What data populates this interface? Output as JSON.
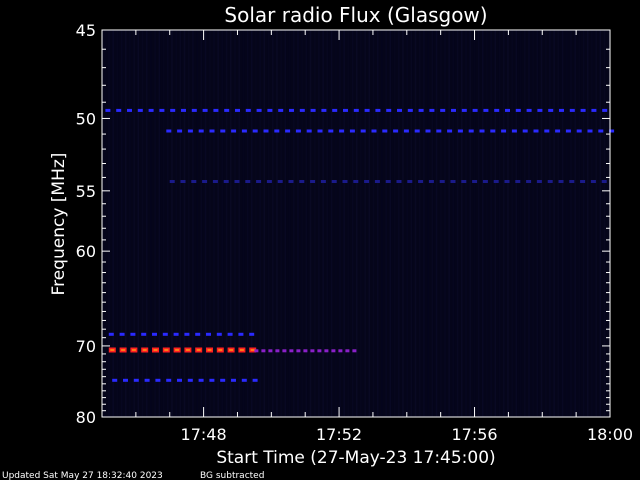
{
  "chart_data": {
    "type": "heatmap",
    "title": "Solar radio Flux (Glasgow)",
    "xlabel": "Start Time (27-May-23 17:45:00)",
    "ylabel": "Frequency [MHz]",
    "x_ticks": [
      "17:48",
      "17:52",
      "17:56",
      "18:00"
    ],
    "x_tick_minutes": [
      3,
      7,
      11,
      15
    ],
    "xlim_minutes": [
      0,
      15
    ],
    "y_ticks": [
      45,
      50,
      55,
      60,
      70,
      80
    ],
    "ylim": [
      45,
      80
    ],
    "background_color": "#000000",
    "plot_background": "#05051a",
    "emission_bands": [
      {
        "freq": 49.5,
        "x_minutes": [
          0.1,
          15.0
        ],
        "intensity": "low",
        "pattern": "dashed"
      },
      {
        "freq": 50.8,
        "x_minutes": [
          1.9,
          15.0
        ],
        "intensity": "low",
        "pattern": "dashed"
      },
      {
        "freq": 54.3,
        "x_minutes": [
          2.0,
          15.0
        ],
        "intensity": "faint",
        "pattern": "dashed"
      },
      {
        "freq": 68.6,
        "x_minutes": [
          0.2,
          4.5
        ],
        "intensity": "low",
        "pattern": "dashed"
      },
      {
        "freq": 70.5,
        "x_minutes": [
          0.2,
          4.5
        ],
        "intensity": "high",
        "pattern": "dashed"
      },
      {
        "freq": 70.6,
        "x_minutes": [
          4.5,
          7.4
        ],
        "intensity": "medium",
        "pattern": "dotted"
      },
      {
        "freq": 74.5,
        "x_minutes": [
          0.3,
          4.7
        ],
        "intensity": "low",
        "pattern": "dashed"
      }
    ],
    "colors": {
      "low": "#2a2aff",
      "faint": "#1a1a8a",
      "medium": "#8a20c8",
      "high": "#ff7a18",
      "high_edge": "#ff2020"
    }
  },
  "footer": {
    "updated": "Updated Sat May 27 18:32:40 2023",
    "bg_note": "BG subtracted"
  }
}
